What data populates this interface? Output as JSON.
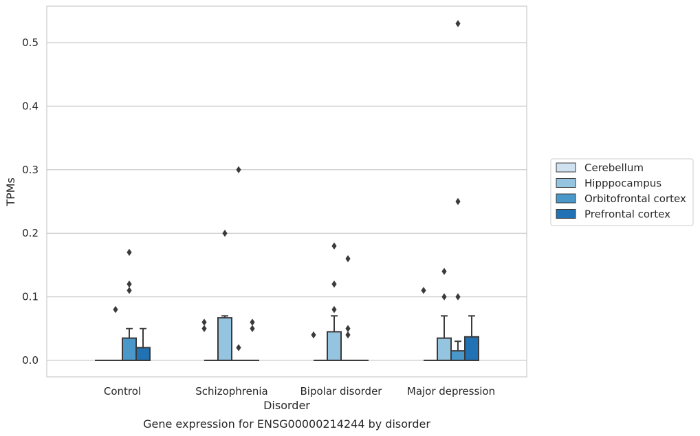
{
  "chart_data": {
    "type": "box",
    "xlabel": "Disorder",
    "ylabel": "TPMs",
    "caption": "Gene expression for ENSG00000214244 by disorder",
    "ylim": [
      -0.026,
      0.556
    ],
    "yticks": [
      "0.0",
      "0.1",
      "0.2",
      "0.3",
      "0.4",
      "0.5"
    ],
    "grid": true,
    "legend_position": "right",
    "categories": [
      "Control",
      "Schizophrenia",
      "Bipolar disorder",
      "Major depression"
    ],
    "series": [
      {
        "name": "Cerebellum",
        "color": "#d0e1f2",
        "boxes": [
          {
            "q1": 0,
            "median": 0,
            "q3": 0,
            "whisker_low": 0,
            "whisker_high": 0,
            "outliers": []
          },
          {
            "q1": 0,
            "median": 0,
            "q3": 0,
            "whisker_low": 0,
            "whisker_high": 0,
            "outliers": []
          },
          {
            "q1": 0,
            "median": 0,
            "q3": 0,
            "whisker_low": 0,
            "whisker_high": 0,
            "outliers": []
          },
          {
            "q1": 0,
            "median": 0,
            "q3": 0,
            "whisker_low": 0,
            "whisker_high": 0,
            "outliers": []
          }
        ]
      },
      {
        "name": "Hipppocampus",
        "color": "#94c4df",
        "boxes": [
          {
            "q1": 0,
            "median": 0,
            "q3": 0,
            "whisker_low": 0,
            "whisker_high": 0,
            "outliers": [
              0.08
            ]
          },
          {
            "q1": 0,
            "median": 0,
            "q3": 0.067,
            "whisker_low": 0,
            "whisker_high": 0.07,
            "outliers": [
              0.2
            ]
          },
          {
            "q1": 0,
            "median": 0,
            "q3": 0.045,
            "whisker_low": 0,
            "whisker_high": 0.07,
            "outliers": [
              0.18,
              0.12,
              0.08
            ]
          },
          {
            "q1": 0,
            "median": 0,
            "q3": 0.035,
            "whisker_low": 0,
            "whisker_high": 0.07,
            "outliers": [
              0.14,
              0.1
            ]
          }
        ]
      },
      {
        "name": "Orbitofrontal cortex",
        "color": "#4a98c9",
        "boxes": [
          {
            "q1": 0,
            "median": 0,
            "q3": 0.035,
            "whisker_low": 0,
            "whisker_high": 0.05,
            "outliers": [
              0.17,
              0.12,
              0.11
            ]
          },
          {
            "q1": 0,
            "median": 0,
            "q3": 0,
            "whisker_low": 0,
            "whisker_high": 0,
            "outliers": [
              0.3,
              0.02
            ]
          },
          {
            "q1": 0,
            "median": 0,
            "q3": 0,
            "whisker_low": 0,
            "whisker_high": 0,
            "outliers": [
              0.16,
              0.05,
              0.04
            ]
          },
          {
            "q1": 0,
            "median": 0,
            "q3": 0.015,
            "whisker_low": 0,
            "whisker_high": 0.03,
            "outliers": [
              0.53,
              0.25,
              0.1
            ]
          }
        ]
      },
      {
        "name": "Prefrontal cortex",
        "color": "#2171b5",
        "boxes": [
          {
            "q1": 0,
            "median": 0,
            "q3": 0.02,
            "whisker_low": 0,
            "whisker_high": 0.05,
            "outliers": []
          },
          {
            "q1": 0,
            "median": 0,
            "q3": 0,
            "whisker_low": 0,
            "whisker_high": 0,
            "outliers": [
              0.06,
              0.05
            ]
          },
          {
            "q1": 0,
            "median": 0,
            "q3": 0,
            "whisker_low": 0,
            "whisker_high": 0,
            "outliers": []
          },
          {
            "q1": 0,
            "median": 0,
            "q3": 0.037,
            "whisker_low": 0,
            "whisker_high": 0.07,
            "outliers": []
          }
        ]
      }
    ],
    "extra_outliers": [
      {
        "category": 0,
        "series": 1,
        "values": []
      },
      {
        "category": 1,
        "series": 1,
        "values": [
          0.06,
          0.05
        ]
      },
      {
        "category": 2,
        "series": 1,
        "values": [
          0.04
        ]
      },
      {
        "category": 3,
        "series": 1,
        "values": [
          0.11
        ]
      }
    ]
  }
}
